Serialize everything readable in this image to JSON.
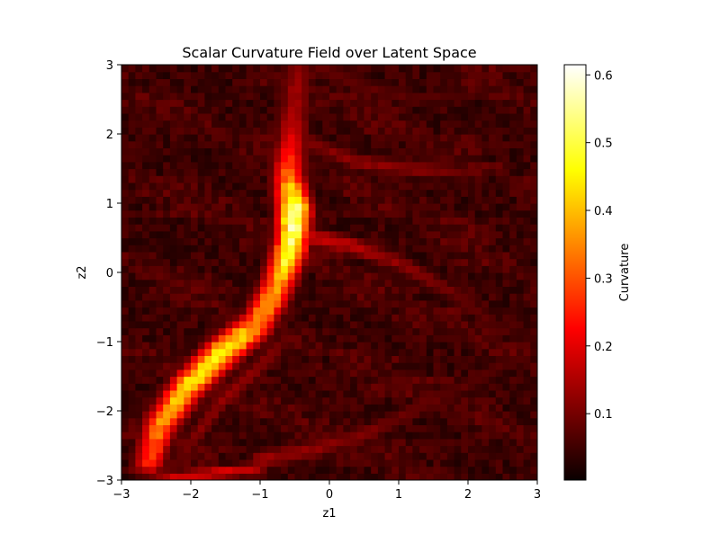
{
  "chart_data": {
    "type": "heatmap",
    "title": "Scalar Curvature Field over Latent Space",
    "xlabel": "z1",
    "ylabel": "z2",
    "xlim": [
      -3,
      3
    ],
    "ylim": [
      -3,
      3
    ],
    "xticks": [
      -3,
      -2,
      -1,
      0,
      1,
      2,
      3
    ],
    "yticks": [
      -3,
      -2,
      -1,
      0,
      1,
      2,
      3
    ],
    "xtick_labels": [
      "−3",
      "−2",
      "−1",
      "0",
      "1",
      "2",
      "3"
    ],
    "ytick_labels": [
      "−3",
      "−2",
      "−1",
      "0",
      "1",
      "2",
      "3"
    ],
    "grid": false,
    "colormap": "hot",
    "grid_size": 60,
    "colorbar": {
      "label": "Curvature",
      "min": 0.002,
      "max": 0.615,
      "ticks": [
        0.1,
        0.2,
        0.3,
        0.4,
        0.5,
        0.6
      ],
      "tick_labels": [
        "0.1",
        "0.2",
        "0.3",
        "0.4",
        "0.5",
        "0.6"
      ]
    },
    "background_level": 0.045,
    "ridges": [
      {
        "points": [
          [
            -2.6,
            -2.7
          ],
          [
            -2.45,
            -2.2
          ],
          [
            -2.05,
            -1.65
          ],
          [
            -1.55,
            -1.15
          ],
          [
            -1.05,
            -0.75
          ],
          [
            -0.75,
            -0.2
          ],
          [
            -0.55,
            0.4
          ],
          [
            -0.5,
            0.9
          ],
          [
            -0.6,
            1.4
          ],
          [
            -0.55,
            1.9
          ],
          [
            -0.5,
            2.4
          ],
          [
            -0.45,
            3.0
          ]
        ],
        "peaks": [
          0.26,
          0.35,
          0.44,
          0.48,
          0.36,
          0.38,
          0.52,
          0.6,
          0.32,
          0.2,
          0.14,
          0.12
        ],
        "width": 0.16
      },
      {
        "points": [
          [
            -2.8,
            -2.85
          ],
          [
            -2.2,
            -2.95
          ],
          [
            -1.5,
            -2.88
          ],
          [
            -1.0,
            -2.82
          ]
        ],
        "peaks": [
          0.12,
          0.18,
          0.2,
          0.15
        ],
        "width": 0.07
      },
      {
        "points": [
          [
            -2.1,
            -2.6
          ],
          [
            -1.6,
            -1.9
          ],
          [
            -1.0,
            -1.35
          ],
          [
            -0.75,
            -1.1
          ]
        ],
        "peaks": [
          0.1,
          0.12,
          0.12,
          0.1
        ],
        "width": 0.1
      },
      {
        "points": [
          [
            -0.45,
            0.55
          ],
          [
            0.3,
            0.4
          ],
          [
            1.0,
            0.15
          ],
          [
            1.8,
            -0.3
          ],
          [
            2.4,
            -0.75
          ]
        ],
        "peaks": [
          0.2,
          0.16,
          0.12,
          0.09,
          0.07
        ],
        "width": 0.1
      },
      {
        "points": [
          [
            -0.3,
            1.9
          ],
          [
            0.4,
            1.6
          ],
          [
            1.2,
            1.5
          ],
          [
            2.0,
            1.45
          ]
        ],
        "peaks": [
          0.1,
          0.12,
          0.12,
          0.08
        ],
        "width": 0.1
      },
      {
        "points": [
          [
            -1.0,
            -2.7
          ],
          [
            -0.2,
            -2.55
          ],
          [
            0.6,
            -2.3
          ],
          [
            1.4,
            -1.9
          ],
          [
            2.2,
            -1.5
          ],
          [
            2.9,
            -1.1
          ]
        ],
        "peaks": [
          0.13,
          0.12,
          0.1,
          0.08,
          0.07,
          0.06
        ],
        "width": 0.11
      },
      {
        "points": [
          [
            -0.2,
            3.0
          ],
          [
            0.4,
            2.7
          ],
          [
            1.2,
            2.5
          ],
          [
            2.2,
            2.6
          ]
        ],
        "peaks": [
          0.09,
          0.08,
          0.07,
          0.06
        ],
        "width": 0.1
      }
    ]
  }
}
